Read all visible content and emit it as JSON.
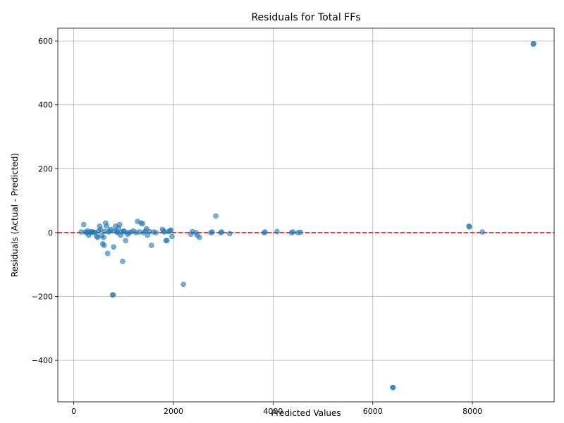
{
  "chart_data": {
    "type": "scatter",
    "title": "Residuals for Total FFs",
    "xlabel": "Predicted Values",
    "ylabel": "Residuals (Actual - Predicted)",
    "xlim": [
      -320,
      9640
    ],
    "ylim": [
      -530,
      640
    ],
    "xticks": [
      0,
      2000,
      4000,
      6000,
      8000
    ],
    "yticks": [
      -400,
      -200,
      0,
      200,
      400,
      600
    ],
    "xtick_labels": [
      "0",
      "2000",
      "4000",
      "6000",
      "8000"
    ],
    "ytick_labels": [
      "−400",
      "−200",
      "0",
      "200",
      "400",
      "600"
    ],
    "grid": true,
    "reference_line": {
      "y": 0,
      "color": "#ff0000",
      "style": "dashed"
    },
    "point_color": "#1f77b4",
    "points": [
      [
        150,
        2
      ],
      [
        200,
        25
      ],
      [
        230,
        2
      ],
      [
        260,
        0
      ],
      [
        280,
        5
      ],
      [
        300,
        -8
      ],
      [
        320,
        0
      ],
      [
        350,
        3
      ],
      [
        380,
        1
      ],
      [
        400,
        2
      ],
      [
        430,
        0
      ],
      [
        460,
        -12
      ],
      [
        480,
        -15
      ],
      [
        500,
        5
      ],
      [
        520,
        20
      ],
      [
        540,
        10
      ],
      [
        560,
        -10
      ],
      [
        580,
        -35
      ],
      [
        600,
        -15
      ],
      [
        610,
        -40
      ],
      [
        620,
        3
      ],
      [
        640,
        30
      ],
      [
        660,
        20
      ],
      [
        680,
        -65
      ],
      [
        700,
        2
      ],
      [
        720,
        5
      ],
      [
        750,
        10
      ],
      [
        780,
        -195
      ],
      [
        790,
        -195
      ],
      [
        800,
        -45
      ],
      [
        820,
        5
      ],
      [
        840,
        20
      ],
      [
        860,
        3
      ],
      [
        880,
        0
      ],
      [
        900,
        15
      ],
      [
        920,
        25
      ],
      [
        940,
        -8
      ],
      [
        960,
        2
      ],
      [
        980,
        -90
      ],
      [
        1000,
        5
      ],
      [
        1020,
        3
      ],
      [
        1040,
        -25
      ],
      [
        1080,
        -5
      ],
      [
        1100,
        0
      ],
      [
        1150,
        2
      ],
      [
        1200,
        5
      ],
      [
        1250,
        0
      ],
      [
        1280,
        35
      ],
      [
        1320,
        2
      ],
      [
        1350,
        30
      ],
      [
        1380,
        28
      ],
      [
        1400,
        0
      ],
      [
        1440,
        5
      ],
      [
        1460,
        12
      ],
      [
        1480,
        -8
      ],
      [
        1520,
        3
      ],
      [
        1560,
        -40
      ],
      [
        1600,
        2
      ],
      [
        1650,
        0
      ],
      [
        1780,
        10
      ],
      [
        1800,
        5
      ],
      [
        1820,
        2
      ],
      [
        1850,
        -25
      ],
      [
        1870,
        -25
      ],
      [
        1900,
        3
      ],
      [
        1930,
        5
      ],
      [
        1950,
        8
      ],
      [
        1970,
        -12
      ],
      [
        2200,
        -162
      ],
      [
        2350,
        -5
      ],
      [
        2380,
        3
      ],
      [
        2450,
        0
      ],
      [
        2480,
        -8
      ],
      [
        2520,
        -15
      ],
      [
        2750,
        0
      ],
      [
        2780,
        2
      ],
      [
        2850,
        52
      ],
      [
        2950,
        0
      ],
      [
        2970,
        2
      ],
      [
        3130,
        -3
      ],
      [
        3820,
        0
      ],
      [
        3840,
        2
      ],
      [
        4080,
        3
      ],
      [
        4370,
        0
      ],
      [
        4400,
        2
      ],
      [
        4500,
        0
      ],
      [
        4550,
        1
      ],
      [
        6400,
        -485
      ],
      [
        6410,
        -485
      ],
      [
        7930,
        20
      ],
      [
        7940,
        18
      ],
      [
        8200,
        2
      ],
      [
        9220,
        590
      ],
      [
        9230,
        592
      ]
    ]
  }
}
